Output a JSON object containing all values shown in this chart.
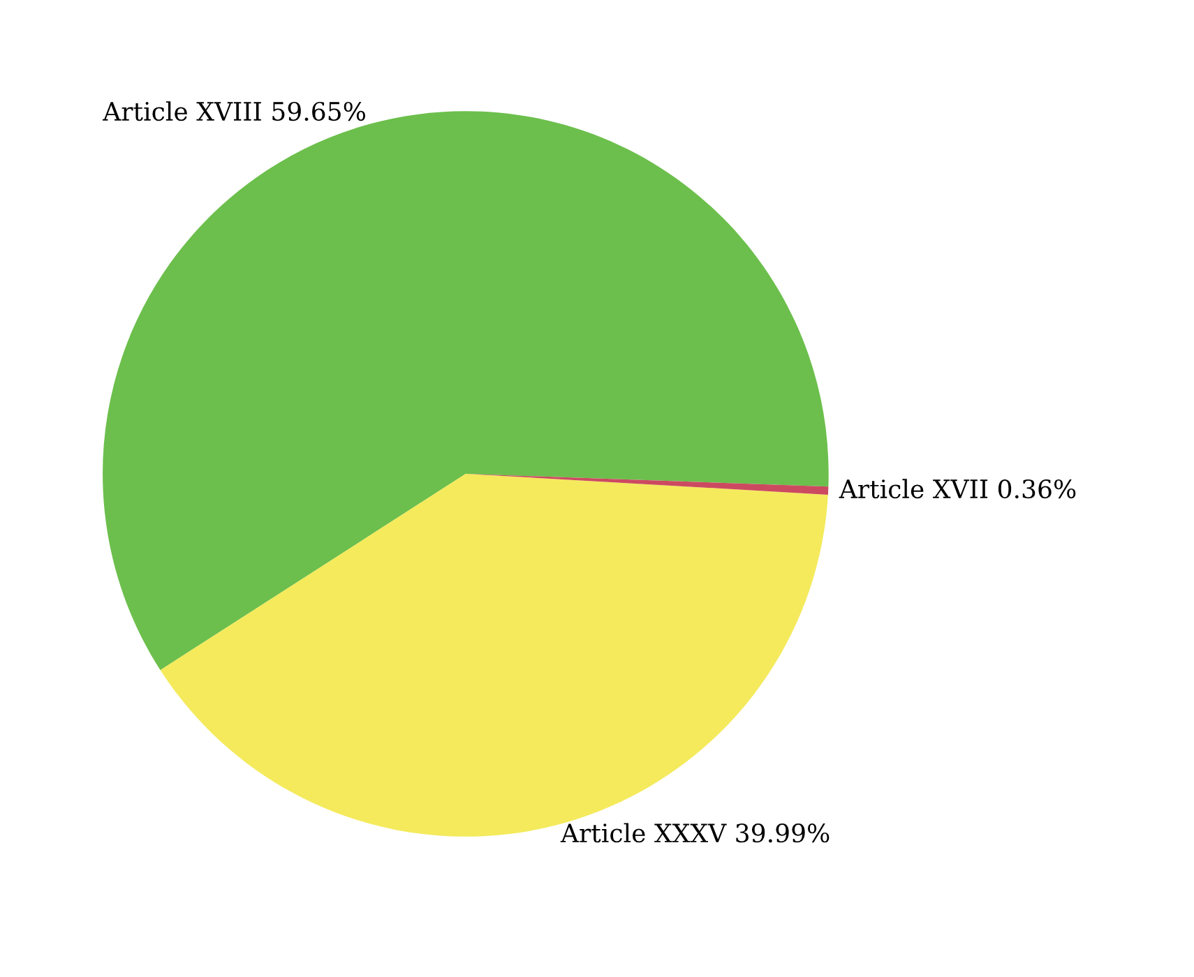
{
  "chart_data": {
    "type": "pie",
    "categories": [
      "Article XVIII",
      "Article XXXV",
      "Article XVII"
    ],
    "values": [
      59.65,
      39.99,
      0.36
    ],
    "value_labels": [
      "59.65%",
      "39.99%",
      "0.36%"
    ],
    "colors": [
      "#6cbf4c",
      "#f4ea5c",
      "#cc4a60"
    ]
  }
}
